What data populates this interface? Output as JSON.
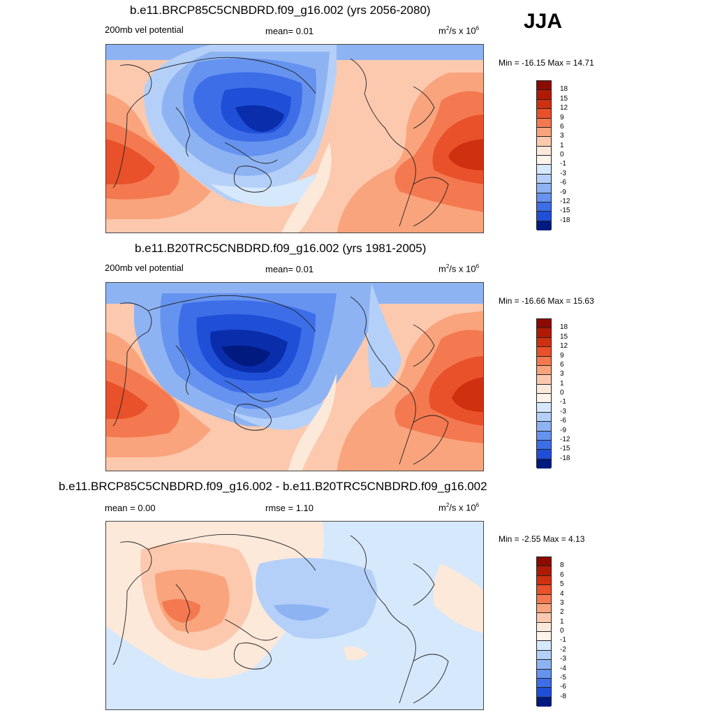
{
  "season": "JJA",
  "colors": {
    "neg": [
      "#d6e8fb",
      "#b4d0f8",
      "#8eb3f3",
      "#6593ef",
      "#3d6ee8",
      "#1f4fd6",
      "#0a2dab",
      "#001a80",
      "#000c66"
    ],
    "pos": [
      "#fde9da",
      "#fcc9ae",
      "#f9a47d",
      "#f47950",
      "#e8512a",
      "#cf3010",
      "#b01a05",
      "#8b0b00",
      "#6e0000"
    ],
    "zero": "#fdf3ea"
  },
  "panels": [
    {
      "title": "b.e11.BRCP85C5CNBDRD.f09_g16.002 (yrs 2056-2080)",
      "left_label": "200mb vel potential",
      "mid_label": "mean=   0.01",
      "units_base": "m",
      "units_exp": "2",
      "units_mid": "/s x 10",
      "units_pow": "6",
      "minmax": "Min = -16.15 Max =  14.71",
      "colorbar_labels": [
        "18",
        "15",
        "12",
        "9",
        "6",
        "3",
        "1",
        "0",
        "-1",
        "-3",
        "-6",
        "-9",
        "-12",
        "-15",
        "-18"
      ]
    },
    {
      "title": "b.e11.B20TRC5CNBDRD.f09_g16.002 (yrs 1981-2005)",
      "left_label": "200mb vel potential",
      "mid_label": "mean=   0.01",
      "units_base": "m",
      "units_exp": "2",
      "units_mid": "/s x 10",
      "units_pow": "6",
      "minmax": "Min = -16.66 Max =  15.63",
      "colorbar_labels": [
        "18",
        "15",
        "12",
        "9",
        "6",
        "3",
        "1",
        "0",
        "-1",
        "-3",
        "-6",
        "-9",
        "-12",
        "-15",
        "-18"
      ]
    },
    {
      "title": "b.e11.BRCP85C5CNBDRD.f09_g16.002 - b.e11.B20TRC5CNBDRD.f09_g16.002",
      "left_label": "mean =   0.00",
      "mid_label": "rmse =   1.10",
      "units_base": "m",
      "units_exp": "2",
      "units_mid": "/s x 10",
      "units_pow": "6",
      "minmax": "Min =  -2.55 Max =   4.13",
      "colorbar_labels": [
        "8",
        "6",
        "5",
        "4",
        "3",
        "2",
        "1",
        "0",
        "-1",
        "-2",
        "-3",
        "-4",
        "-5",
        "-6",
        "-8"
      ]
    }
  ]
}
